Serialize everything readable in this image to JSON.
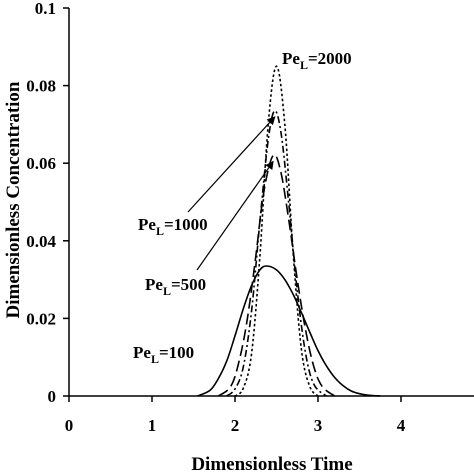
{
  "chart_data": {
    "type": "line",
    "title": "",
    "xlabel": "Dimensionless Time",
    "ylabel": "Dimensionless Concentration",
    "xlim": [
      0,
      5
    ],
    "ylim": [
      0,
      0.1
    ],
    "xticks": [
      0,
      1,
      2,
      3,
      4
    ],
    "yticks": [
      0,
      0.02,
      0.04,
      0.06,
      0.08,
      0.1
    ],
    "xtick_labels": [
      "0",
      "1",
      "2",
      "3",
      "4"
    ],
    "ytick_labels": [
      "0",
      "0.02",
      "0.04",
      "0.06",
      "0.08",
      "0.1"
    ],
    "grid": false,
    "legend": "none",
    "series": [
      {
        "label_main": "Pe",
        "label_sub": "L",
        "label_value": "=100",
        "style": "solid",
        "peak_x": 2.38,
        "peak_y": 0.0335,
        "x_start": 1.55,
        "x_end": 3.75,
        "x": [
          1.55,
          1.7,
          1.8,
          1.9,
          2.0,
          2.1,
          2.2,
          2.3,
          2.38,
          2.5,
          2.6,
          2.7,
          2.8,
          2.9,
          3.0,
          3.1,
          3.2,
          3.3,
          3.4,
          3.5,
          3.6,
          3.75
        ],
        "y": [
          0.0,
          0.0015,
          0.0045,
          0.009,
          0.0155,
          0.0225,
          0.0285,
          0.0325,
          0.0335,
          0.0325,
          0.03,
          0.0262,
          0.0215,
          0.0165,
          0.0117,
          0.0078,
          0.0048,
          0.0027,
          0.0013,
          0.0006,
          0.0002,
          0.0
        ]
      },
      {
        "label_main": "Pe",
        "label_sub": "L",
        "label_value": "=500",
        "style": "long-dash",
        "peak_x": 2.46,
        "peak_y": 0.062,
        "x_start": 1.8,
        "x_end": 3.2,
        "x": [
          1.8,
          1.95,
          2.05,
          2.15,
          2.25,
          2.35,
          2.46,
          2.55,
          2.65,
          2.75,
          2.85,
          2.95,
          3.05,
          3.2
        ],
        "y": [
          0.0,
          0.0025,
          0.009,
          0.02,
          0.036,
          0.053,
          0.062,
          0.058,
          0.045,
          0.03,
          0.017,
          0.0075,
          0.0025,
          0.0
        ]
      },
      {
        "label_main": "Pe",
        "label_sub": "L",
        "label_value": "=1000",
        "style": "dash-dot",
        "peak_x": 2.48,
        "peak_y": 0.0735,
        "x_start": 1.9,
        "x_end": 3.1,
        "x": [
          1.9,
          2.0,
          2.1,
          2.2,
          2.3,
          2.4,
          2.48,
          2.56,
          2.65,
          2.75,
          2.85,
          2.95,
          3.1
        ],
        "y": [
          0.0,
          0.0018,
          0.0075,
          0.022,
          0.045,
          0.066,
          0.0735,
          0.067,
          0.049,
          0.027,
          0.011,
          0.003,
          0.0
        ]
      },
      {
        "label_main": "Pe",
        "label_sub": "L",
        "label_value": "=2000",
        "style": "dotted",
        "peak_x": 2.5,
        "peak_y": 0.085,
        "x_start": 2.0,
        "x_end": 3.0,
        "x": [
          2.0,
          2.1,
          2.2,
          2.3,
          2.4,
          2.5,
          2.6,
          2.7,
          2.8,
          2.9,
          3.0
        ],
        "y": [
          0.0,
          0.002,
          0.011,
          0.036,
          0.07,
          0.085,
          0.07,
          0.037,
          0.012,
          0.0025,
          0.0
        ]
      }
    ]
  }
}
